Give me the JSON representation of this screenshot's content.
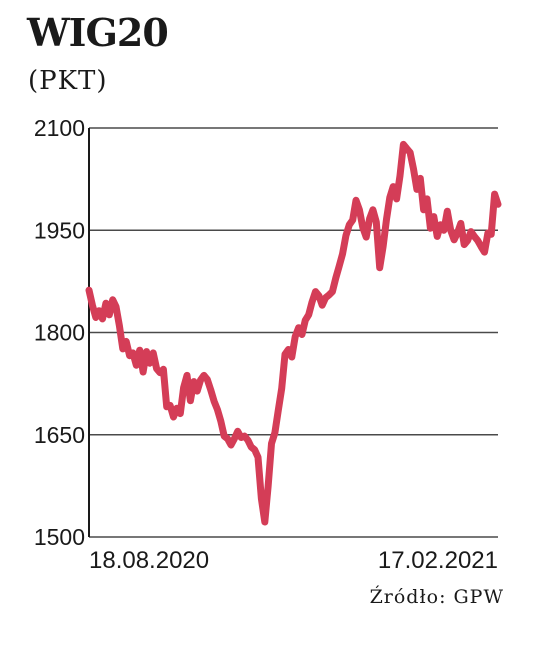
{
  "header": {
    "title": "WIG20",
    "subtitle": "(PKT)"
  },
  "source": "Źródło: GPW",
  "chart_data": {
    "type": "line",
    "title": "WIG20",
    "ylabel": "(PKT)",
    "ylim": [
      1500,
      2100
    ],
    "yticks": [
      1500,
      1650,
      1800,
      1950,
      2100
    ],
    "ytick_labels": [
      "1500",
      "1650",
      "1800",
      "1950",
      "2100"
    ],
    "x_tick_labels": [
      "18.08.2020",
      "17.02.2021"
    ],
    "grid": "horizontal",
    "line_color": "#d43d57",
    "series": [
      {
        "values": [
          1862,
          1840,
          1822,
          1832,
          1820,
          1843,
          1826,
          1848,
          1838,
          1810,
          1776,
          1787,
          1766,
          1770,
          1752,
          1774,
          1742,
          1772,
          1755,
          1770,
          1747,
          1741,
          1746,
          1691,
          1693,
          1676,
          1689,
          1681,
          1719,
          1737,
          1700,
          1728,
          1714,
          1730,
          1737,
          1731,
          1716,
          1699,
          1687,
          1670,
          1648,
          1644,
          1635,
          1644,
          1655,
          1646,
          1648,
          1642,
          1632,
          1628,
          1617,
          1556,
          1522,
          1574,
          1637,
          1653,
          1686,
          1718,
          1768,
          1775,
          1764,
          1794,
          1807,
          1797,
          1818,
          1826,
          1845,
          1860,
          1854,
          1840,
          1851,
          1855,
          1860,
          1880,
          1897,
          1915,
          1942,
          1958,
          1965,
          1994,
          1980,
          1954,
          1940,
          1967,
          1980,
          1962,
          1895,
          1926,
          1966,
          1998,
          2014,
          1996,
          2030,
          2076,
          2070,
          2064,
          2040,
          2010,
          2026,
          1980,
          1996,
          1953,
          1970,
          1941,
          1958,
          1950,
          1978,
          1950,
          1936,
          1946,
          1960,
          1929,
          1935,
          1948,
          1941,
          1935,
          1926,
          1918,
          1946,
          1944,
          2003,
          1988
        ]
      }
    ]
  }
}
